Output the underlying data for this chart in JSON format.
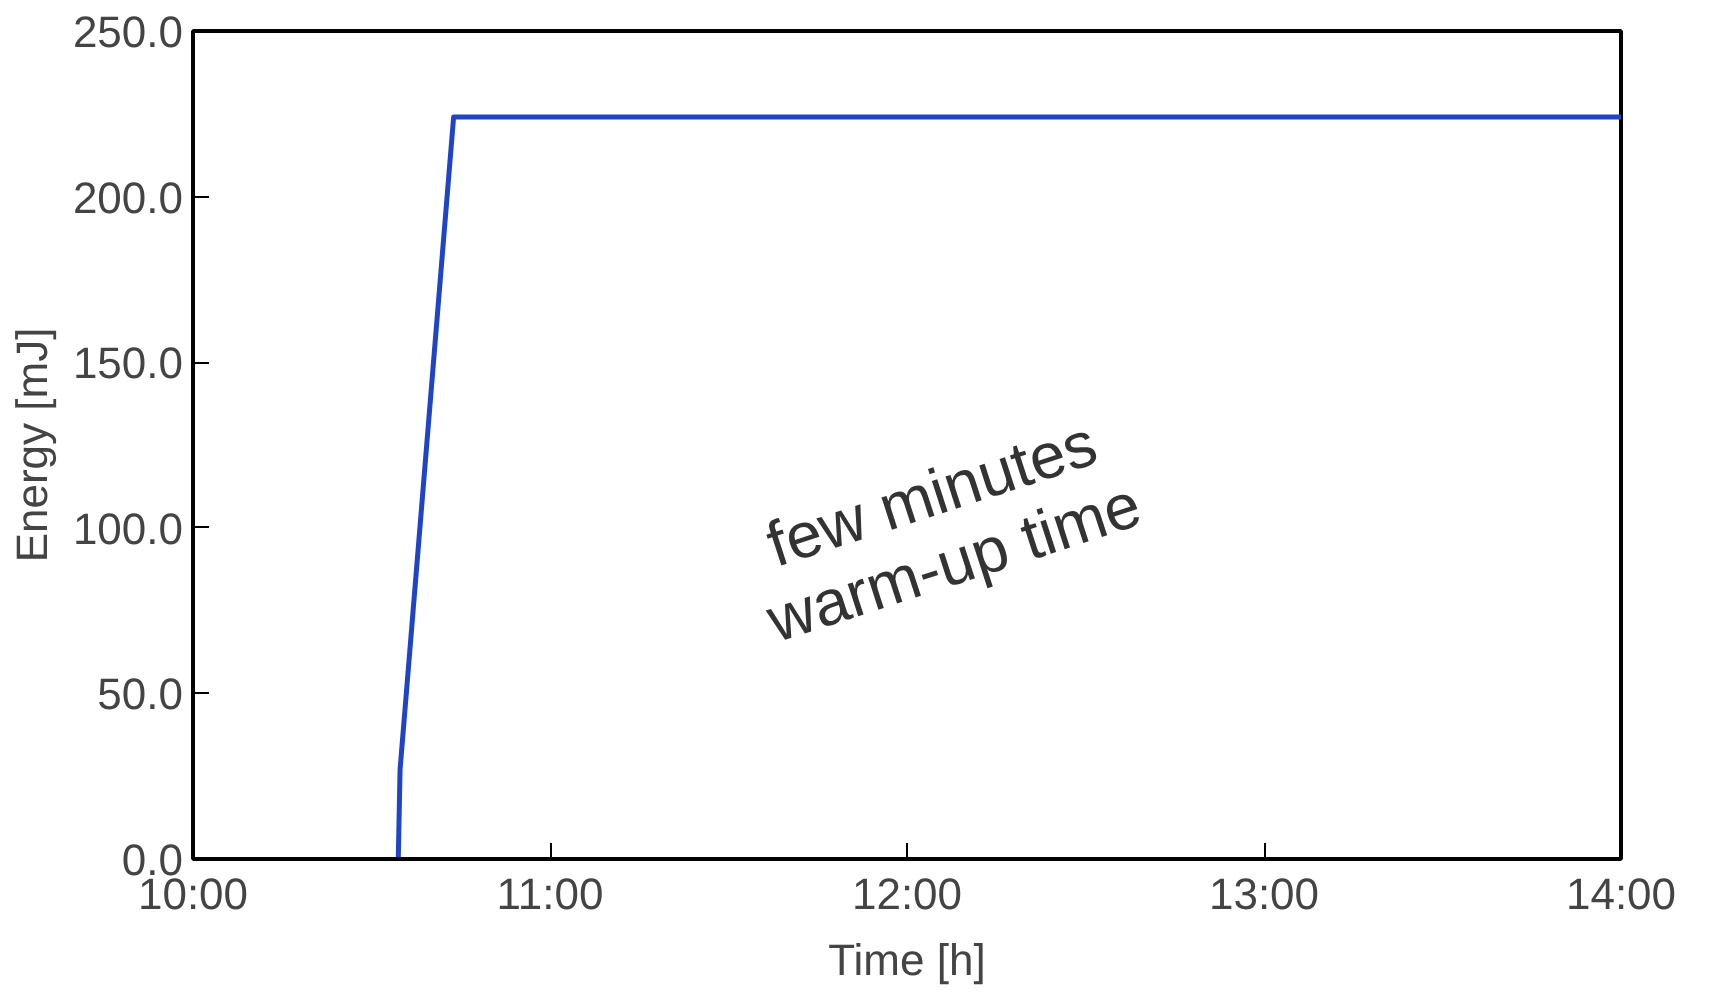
{
  "chart_data": {
    "type": "line",
    "xlabel": "Time [h]",
    "ylabel": "Energy [mJ]",
    "x": [
      10.575,
      10.58,
      10.73,
      14.0
    ],
    "series": [
      {
        "color": "#1f44c8",
        "values": [
          0,
          27,
          224,
          224
        ]
      }
    ],
    "xlim": [
      10,
      14
    ],
    "ylim": [
      0,
      250
    ],
    "xticks": [
      {
        "value": 10,
        "label": "10:00"
      },
      {
        "value": 11,
        "label": "11:00"
      },
      {
        "value": 12,
        "label": "12:00"
      },
      {
        "value": 13,
        "label": "13:00"
      },
      {
        "value": 14,
        "label": "14:00"
      }
    ],
    "yticks": [
      {
        "value": 0,
        "label": "0.0"
      },
      {
        "value": 50,
        "label": "50.0"
      },
      {
        "value": 100,
        "label": "100.0"
      },
      {
        "value": 150,
        "label": "150.0"
      },
      {
        "value": 200,
        "label": "200.0"
      },
      {
        "value": 250,
        "label": "250.0"
      }
    ],
    "annotations": [
      "few minutes\nwarm-up time"
    ],
    "grid": false,
    "marker": "none",
    "line_style": "solid"
  }
}
